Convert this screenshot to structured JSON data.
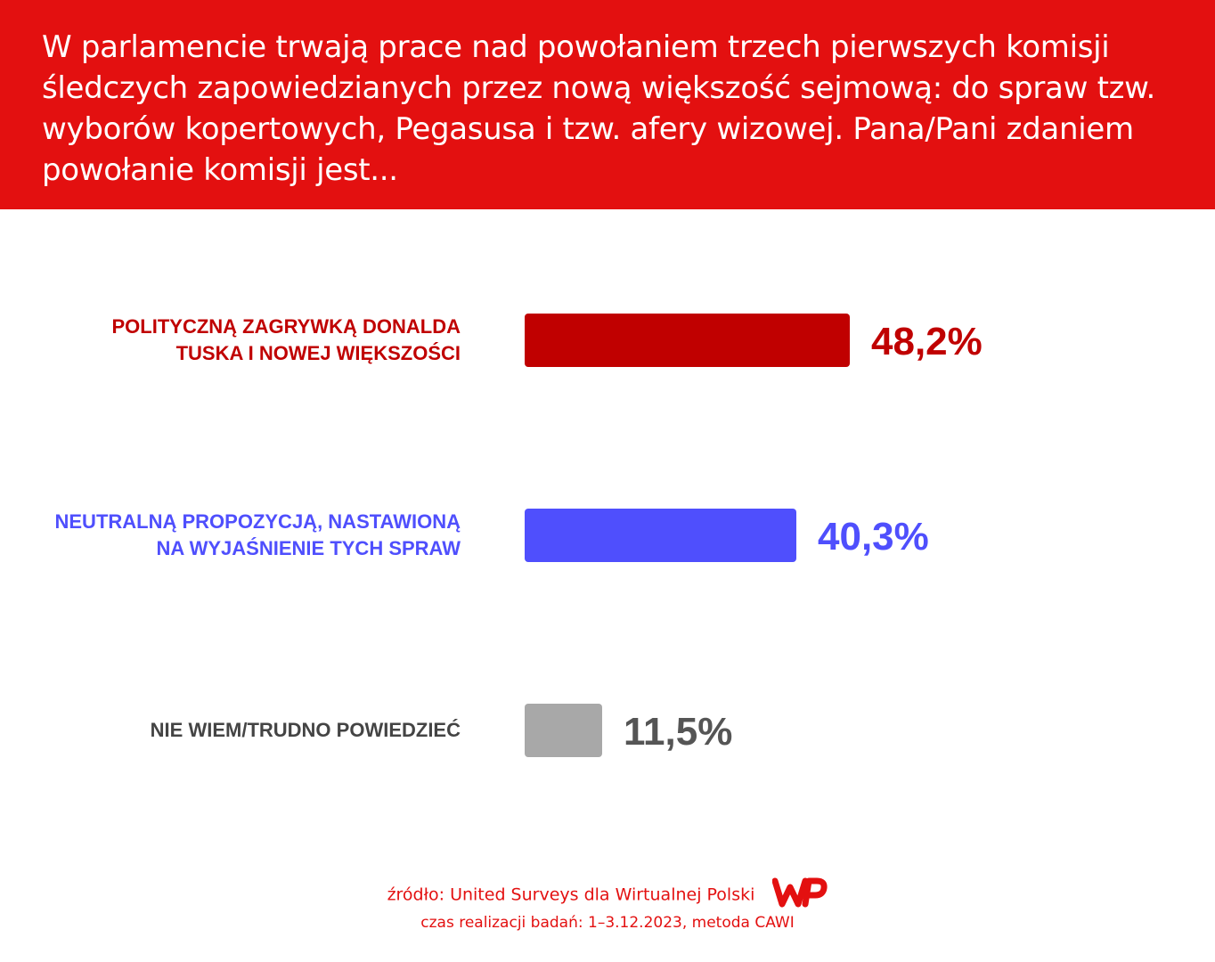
{
  "header": {
    "title": "W parlamencie trwają prace nad powołaniem trzech pierwszych komisji śledczych zapowiedzianych przez nową większość sejmową: do spraw tzw. wyborów kopertowych, Pegasusa i tzw. afery wizowej. Pana/Pani zdaniem powołanie komisji jest..."
  },
  "chart_data": {
    "type": "bar",
    "orientation": "horizontal",
    "unit": "%",
    "categories": [
      "POLITYCZNĄ ZAGRYWKĄ DONALDA\nTUSKA I NOWEJ WIĘKSZOŚCI",
      "NEUTRALNĄ PROPOZYCJĄ, NASTAWIONĄ\nNA WYJAŚNIENIE TYCH SPRAW",
      "NIE WIEM/TRUDNO POWIEDZIEĆ"
    ],
    "values": [
      48.2,
      40.3,
      11.5
    ],
    "value_labels": [
      "48,2%",
      "40,3%",
      "11,5%"
    ],
    "colors": [
      "#c00000",
      "#4f4ffd",
      "#a8a8a8"
    ],
    "label_colors": [
      "#c00000",
      "#4f4ffd",
      "#444444"
    ],
    "value_label_colors": [
      "#c00000",
      "#4f4ffd",
      "#555555"
    ],
    "grid": false
  },
  "footer": {
    "source": "źródło: United Surveys dla Wirtualnej Polski",
    "date": "czas realizacji badań: 1–3.12.2023, metoda CAWI",
    "logo_text": "WP",
    "logo_icon": "wp-logo-icon"
  }
}
